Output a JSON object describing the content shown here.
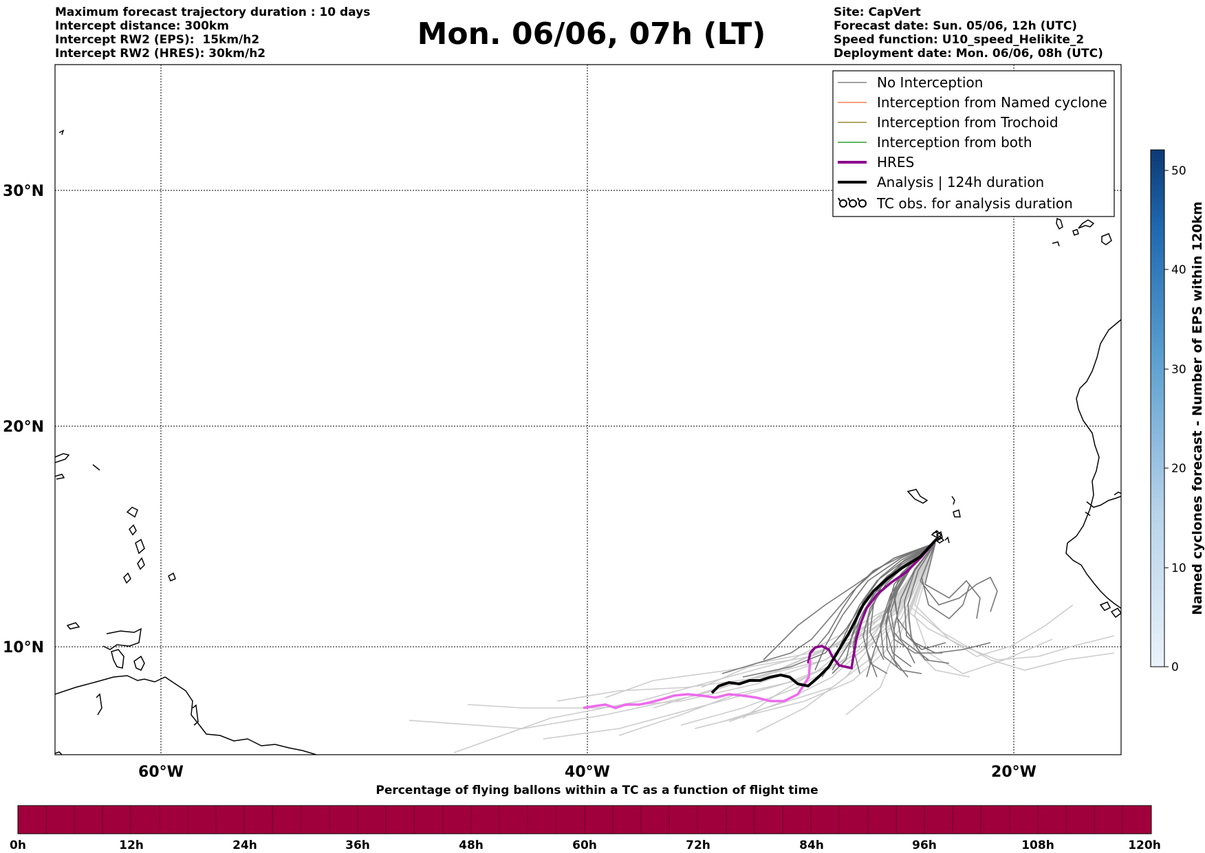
{
  "header_left": [
    "Maximum forecast trajectory duration : 10 days",
    "Intercept distance: 300km",
    "Intercept RW2 (EPS):  15km/h2",
    "Intercept RW2 (HRES): 30km/h2"
  ],
  "title": "Mon. 06/06, 07h (LT)",
  "header_right": [
    "Site: CapVert",
    "Forecast date: Sun. 05/06, 12h (UTC)",
    "Speed function: U10_speed_Helikite_2",
    "Deployment date: Mon. 06/06, 08h (UTC)"
  ],
  "map": {
    "lat_labels": [
      "30°N",
      "20°N",
      "10°N"
    ],
    "lon_labels": [
      "60°W",
      "40°W",
      "20°W"
    ]
  },
  "legend": [
    {
      "label": "No Interception",
      "color": "#808080"
    },
    {
      "label": "Interception from Named cyclone",
      "color": "#ff7f50"
    },
    {
      "label": "Interception from Trochoid",
      "color": "#9a8a3a"
    },
    {
      "label": "Interception from both",
      "color": "#2ca02c"
    },
    {
      "label": "HRES",
      "color": "#8b008b"
    },
    {
      "label": "Analysis | 124h duration",
      "color": "#000000"
    },
    {
      "label": "TC obs. for analysis duration",
      "color": "#000000"
    }
  ],
  "colorbar": {
    "label": "Named cyclones forecast - Number of EPS within 120km",
    "ticks": [
      "0",
      "10",
      "20",
      "30",
      "40",
      "50"
    ],
    "colors": [
      "#e8f1fa",
      "#0d3f7a"
    ]
  },
  "timebar": {
    "title": "Percentage of flying ballons within a TC as a function of flight time",
    "ticks": [
      "0h",
      "12h",
      "24h",
      "36h",
      "48h",
      "60h",
      "72h",
      "84h",
      "96h",
      "108h",
      "120h"
    ],
    "color": "#a0003c"
  }
}
